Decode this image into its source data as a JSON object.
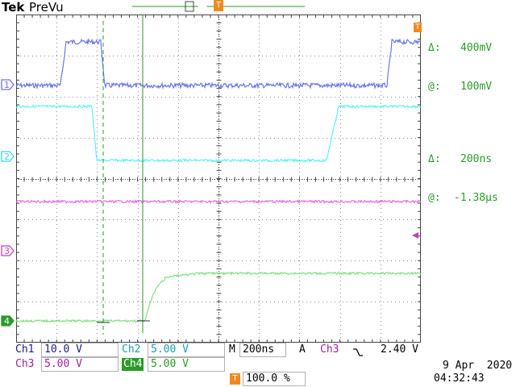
{
  "header": {
    "brand": "Tek",
    "mode": "PreVu",
    "trigger_marker": "T"
  },
  "cursor_readout": {
    "v_delta_symbol": "Δ:",
    "v_delta": "400mV",
    "v_at_symbol": "@:",
    "v_at": "100mV",
    "t_delta_symbol": "Δ:",
    "t_delta": "200ns",
    "t_at_symbol": "@:",
    "t_at": "-1.38µs"
  },
  "channel_markers": [
    {
      "label": "1",
      "color": "#6f74e6"
    },
    {
      "label": "2",
      "color": "#3cd4e6"
    },
    {
      "label": "3",
      "color": "#c040c0"
    },
    {
      "label": "4",
      "color": "#2a9a2a"
    }
  ],
  "channels": {
    "ch1_name": "Ch1",
    "ch1_scale": "10.0 V",
    "ch2_name": "Ch2",
    "ch2_scale": "5.00 V",
    "ch3_name": "Ch3",
    "ch3_scale": "5.00 V",
    "ch4_name": "Ch4",
    "ch4_scale": "5.00 V"
  },
  "timebase": {
    "label": "M",
    "value": "200ns"
  },
  "trigger": {
    "label": "A",
    "source": "Ch3",
    "slope_icon": "falling-edge-icon",
    "level": "2.40 V"
  },
  "record": {
    "marker": "T",
    "position": "100.0 %"
  },
  "datetime": {
    "date": "9 Apr  2020",
    "time": "04:32:43"
  },
  "colors": {
    "ch1": "#6f74e6",
    "ch2": "#5ff2f2",
    "ch3": "#e86ae8",
    "ch4": "#7ee07e",
    "cursor": "#2a9a2a",
    "trigger": "#f08a20",
    "grid": "#555555"
  }
}
